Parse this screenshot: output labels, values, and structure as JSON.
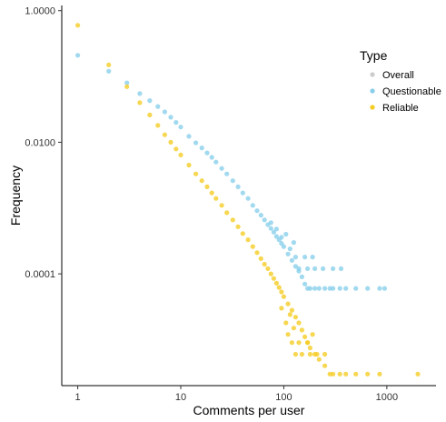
{
  "chart_data": {
    "type": "scatter",
    "title": "",
    "xlabel": "Comments per user",
    "ylabel": "Frequency",
    "x_scale": "log",
    "y_scale": "log",
    "xlim": [
      0.7,
      3000
    ],
    "ylim": [
      2e-06,
      1.2
    ],
    "x_ticks": [
      {
        "value": 1,
        "label": "1"
      },
      {
        "value": 10,
        "label": "10"
      },
      {
        "value": 100,
        "label": "100"
      },
      {
        "value": 1000,
        "label": "1000"
      }
    ],
    "y_ticks": [
      {
        "value": 1,
        "label": "1.0000"
      },
      {
        "value": 0.01,
        "label": "0.0100"
      },
      {
        "value": 0.0001,
        "label": "0.0001"
      }
    ],
    "grid": false,
    "legend": {
      "title": "Type",
      "position": "right",
      "entries": [
        {
          "name": "Overall",
          "color": "#cccccc"
        },
        {
          "name": "Questionable",
          "color": "#87ceeb"
        },
        {
          "name": "Reliable",
          "color": "#f5cc20"
        }
      ]
    },
    "series": [
      {
        "name": "Questionable",
        "color": "#87ceeb",
        "points": [
          [
            1,
            0.21
          ],
          [
            2,
            0.12
          ],
          [
            3,
            0.08
          ],
          [
            4,
            0.055
          ],
          [
            5,
            0.043
          ],
          [
            6,
            0.035
          ],
          [
            7,
            0.029
          ],
          [
            8,
            0.024
          ],
          [
            9,
            0.02
          ],
          [
            10,
            0.017
          ],
          [
            12,
            0.0123
          ],
          [
            14,
            0.0098
          ],
          [
            16,
            0.0082
          ],
          [
            18,
            0.0069
          ],
          [
            20,
            0.0059
          ],
          [
            22,
            0.005
          ],
          [
            25,
            0.004
          ],
          [
            28,
            0.0033
          ],
          [
            32,
            0.0026
          ],
          [
            36,
            0.0021
          ],
          [
            40,
            0.0017
          ],
          [
            45,
            0.0014
          ],
          [
            50,
            0.0011
          ],
          [
            55,
            0.00091
          ],
          [
            60,
            0.00078
          ],
          [
            65,
            0.00066
          ],
          [
            70,
            0.00056
          ],
          [
            75,
            0.00049
          ],
          [
            80,
            0.00043
          ],
          [
            85,
            0.00037
          ],
          [
            90,
            0.00033
          ],
          [
            95,
            0.00029
          ],
          [
            100,
            0.00026
          ],
          [
            110,
            0.0002
          ],
          [
            120,
            0.00016
          ],
          [
            130,
            0.00013
          ],
          [
            140,
            0.00011
          ],
          [
            150,
            9e-05
          ],
          [
            160,
            7e-05
          ],
          [
            170,
            6e-05
          ],
          [
            180,
            6e-05
          ],
          [
            200,
            6e-05
          ],
          [
            220,
            6e-05
          ],
          [
            250,
            6e-05
          ],
          [
            280,
            6e-05
          ],
          [
            300,
            6e-05
          ],
          [
            350,
            6e-05
          ],
          [
            400,
            6e-05
          ],
          [
            500,
            6e-05
          ],
          [
            650,
            6e-05
          ],
          [
            850,
            6e-05
          ],
          [
            950,
            6e-05
          ],
          [
            200,
            0.00012
          ],
          [
            240,
            0.00012
          ],
          [
            300,
            0.00012
          ],
          [
            360,
            0.00012
          ],
          [
            140,
            0.00012
          ],
          [
            170,
            0.00012
          ],
          [
            130,
            0.00018
          ],
          [
            160,
            0.00018
          ],
          [
            190,
            0.00018
          ],
          [
            115,
            0.00024
          ],
          [
            125,
            0.0003
          ],
          [
            95,
            0.00036
          ],
          [
            105,
            0.0004
          ],
          [
            85,
            0.00048
          ],
          [
            75,
            0.0006
          ]
        ]
      },
      {
        "name": "Reliable",
        "color": "#f5cc20",
        "points": [
          [
            1,
            0.6
          ],
          [
            2,
            0.15
          ],
          [
            3,
            0.07
          ],
          [
            4,
            0.04
          ],
          [
            5,
            0.026
          ],
          [
            6,
            0.018
          ],
          [
            7,
            0.013
          ],
          [
            8,
            0.01
          ],
          [
            9,
            0.0079
          ],
          [
            10,
            0.0064
          ],
          [
            12,
            0.0045
          ],
          [
            14,
            0.0033
          ],
          [
            16,
            0.0026
          ],
          [
            18,
            0.0021
          ],
          [
            20,
            0.0017
          ],
          [
            22,
            0.0014
          ],
          [
            25,
            0.0011
          ],
          [
            28,
            0.00085
          ],
          [
            32,
            0.00066
          ],
          [
            36,
            0.00052
          ],
          [
            40,
            0.00041
          ],
          [
            45,
            0.00033
          ],
          [
            50,
            0.00026
          ],
          [
            55,
            0.00021
          ],
          [
            60,
            0.00017
          ],
          [
            65,
            0.00014
          ],
          [
            70,
            0.00012
          ],
          [
            75,
            0.0001
          ],
          [
            80,
            8.5e-05
          ],
          [
            85,
            7.2e-05
          ],
          [
            90,
            6.2e-05
          ],
          [
            95,
            5.3e-05
          ],
          [
            100,
            4.5e-05
          ],
          [
            110,
            3.5e-05
          ],
          [
            120,
            2.8e-05
          ],
          [
            130,
            2.2e-05
          ],
          [
            140,
            1.8e-05
          ],
          [
            150,
            1.4e-05
          ],
          [
            160,
            1.1e-05
          ],
          [
            170,
            9e-06
          ],
          [
            180,
            7.5e-06
          ],
          [
            200,
            6e-06
          ],
          [
            220,
            5e-06
          ],
          [
            250,
            4e-06
          ],
          [
            280,
            3e-06
          ],
          [
            300,
            3e-06
          ],
          [
            350,
            3e-06
          ],
          [
            400,
            3e-06
          ],
          [
            500,
            3e-06
          ],
          [
            650,
            3e-06
          ],
          [
            850,
            3e-06
          ],
          [
            2000,
            3e-06
          ],
          [
            130,
            6e-06
          ],
          [
            150,
            6e-06
          ],
          [
            180,
            6e-06
          ],
          [
            210,
            6e-06
          ],
          [
            250,
            6e-06
          ],
          [
            120,
            9e-06
          ],
          [
            140,
            9e-06
          ],
          [
            170,
            9e-06
          ],
          [
            190,
            1.2e-05
          ],
          [
            110,
            1.2e-05
          ],
          [
            125,
            1.5e-05
          ],
          [
            105,
            1.8e-05
          ],
          [
            115,
            2.4e-05
          ],
          [
            95,
            3e-05
          ]
        ]
      }
    ]
  }
}
